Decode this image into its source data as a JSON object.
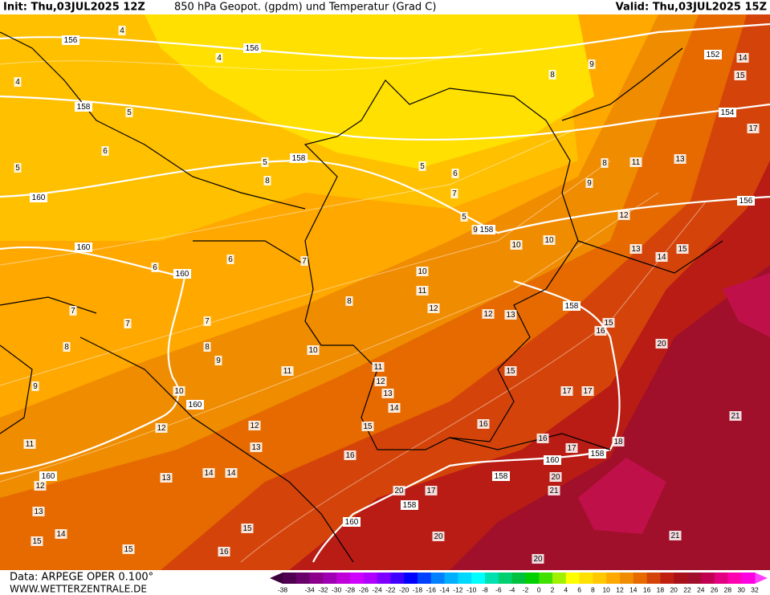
{
  "header": {
    "init": "Init: Thu,03JUL2025 12Z",
    "title": "850 hPa Geopot. (gpdm) und Temperatur (Grad C)",
    "valid": "Valid: Thu,03JUL2025 15Z"
  },
  "footer": {
    "data": "Data: ARPEGE OPER 0.100°",
    "site": "WWW.WETTERZENTRALE.DE"
  },
  "legend": {
    "ticks": [
      -38,
      -34,
      -32,
      -30,
      -28,
      -26,
      -24,
      -22,
      -20,
      -18,
      -16,
      -14,
      -12,
      -10,
      -8,
      -6,
      -4,
      -2,
      0,
      2,
      4,
      6,
      8,
      10,
      12,
      14,
      16,
      18,
      20,
      22,
      24,
      26,
      28,
      30,
      32
    ],
    "colors": [
      "#500050",
      "#6a006a",
      "#8c008c",
      "#a000b4",
      "#c000d8",
      "#d000ff",
      "#b000ff",
      "#8000ff",
      "#4000ff",
      "#0000ff",
      "#0040ff",
      "#0080ff",
      "#00b0ff",
      "#00d8ff",
      "#00ffff",
      "#00e0b0",
      "#00d070",
      "#00c040",
      "#00d000",
      "#40e000",
      "#a0f000",
      "#ffff00",
      "#ffe000",
      "#ffc800",
      "#ffa800",
      "#f08c00",
      "#e66a00",
      "#d4440a",
      "#c02010",
      "#a8101a",
      "#a0102a",
      "#c00050",
      "#e00080",
      "#ff00b0",
      "#ff00e0"
    ]
  },
  "map": {
    "geopotential_labels": [
      156,
      156,
      158,
      158,
      160,
      160,
      160,
      160,
      160,
      158,
      158,
      158,
      158,
      160,
      158,
      160,
      154,
      152,
      156
    ],
    "temperature_labels": [
      4,
      4,
      4,
      5,
      6,
      5,
      5,
      5,
      6,
      7,
      8,
      5,
      6,
      7,
      9,
      10,
      10,
      10,
      11,
      12,
      12,
      13,
      8,
      10,
      11,
      11,
      12,
      13,
      14,
      15,
      15,
      16,
      17,
      17,
      12,
      12,
      13,
      14,
      14,
      13,
      16,
      20,
      17,
      20,
      21,
      20,
      20,
      15,
      15,
      15,
      16,
      11,
      12,
      13,
      14,
      20,
      21,
      21,
      13,
      11,
      12,
      13,
      14,
      15,
      16,
      15,
      16,
      17,
      18,
      9,
      8,
      14,
      15,
      17,
      9,
      8,
      9,
      9,
      8,
      7,
      7,
      7,
      6,
      8,
      10
    ]
  }
}
